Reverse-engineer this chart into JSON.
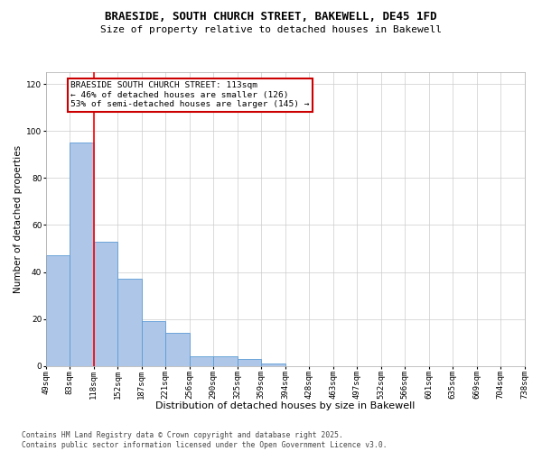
{
  "title": "BRAESIDE, SOUTH CHURCH STREET, BAKEWELL, DE45 1FD",
  "subtitle": "Size of property relative to detached houses in Bakewell",
  "xlabel": "Distribution of detached houses by size in Bakewell",
  "ylabel": "Number of detached properties",
  "bar_values": [
    47,
    95,
    53,
    37,
    19,
    14,
    4,
    4,
    3,
    1,
    0,
    0,
    0,
    0,
    0,
    0,
    0,
    0,
    0,
    0
  ],
  "bin_labels": [
    "49sqm",
    "83sqm",
    "118sqm",
    "152sqm",
    "187sqm",
    "221sqm",
    "256sqm",
    "290sqm",
    "325sqm",
    "359sqm",
    "394sqm",
    "428sqm",
    "463sqm",
    "497sqm",
    "532sqm",
    "566sqm",
    "601sqm",
    "635sqm",
    "669sqm",
    "704sqm",
    "738sqm"
  ],
  "bar_color": "#aec6e8",
  "bar_edge_color": "#5b9bd5",
  "red_line_x": 1.5,
  "annotation_text": "BRAESIDE SOUTH CHURCH STREET: 113sqm\n← 46% of detached houses are smaller (126)\n53% of semi-detached houses are larger (145) →",
  "annotation_box_color": "#ffffff",
  "annotation_box_edge_color": "#cc0000",
  "ylim": [
    0,
    125
  ],
  "yticks": [
    0,
    20,
    40,
    60,
    80,
    100,
    120
  ],
  "background_color": "#ffffff",
  "grid_color": "#cccccc",
  "footer_text": "Contains HM Land Registry data © Crown copyright and database right 2025.\nContains public sector information licensed under the Open Government Licence v3.0.",
  "title_fontsize": 9,
  "subtitle_fontsize": 8,
  "xlabel_fontsize": 8,
  "ylabel_fontsize": 7.5,
  "tick_fontsize": 6.5,
  "annotation_fontsize": 6.8,
  "footer_fontsize": 5.8
}
